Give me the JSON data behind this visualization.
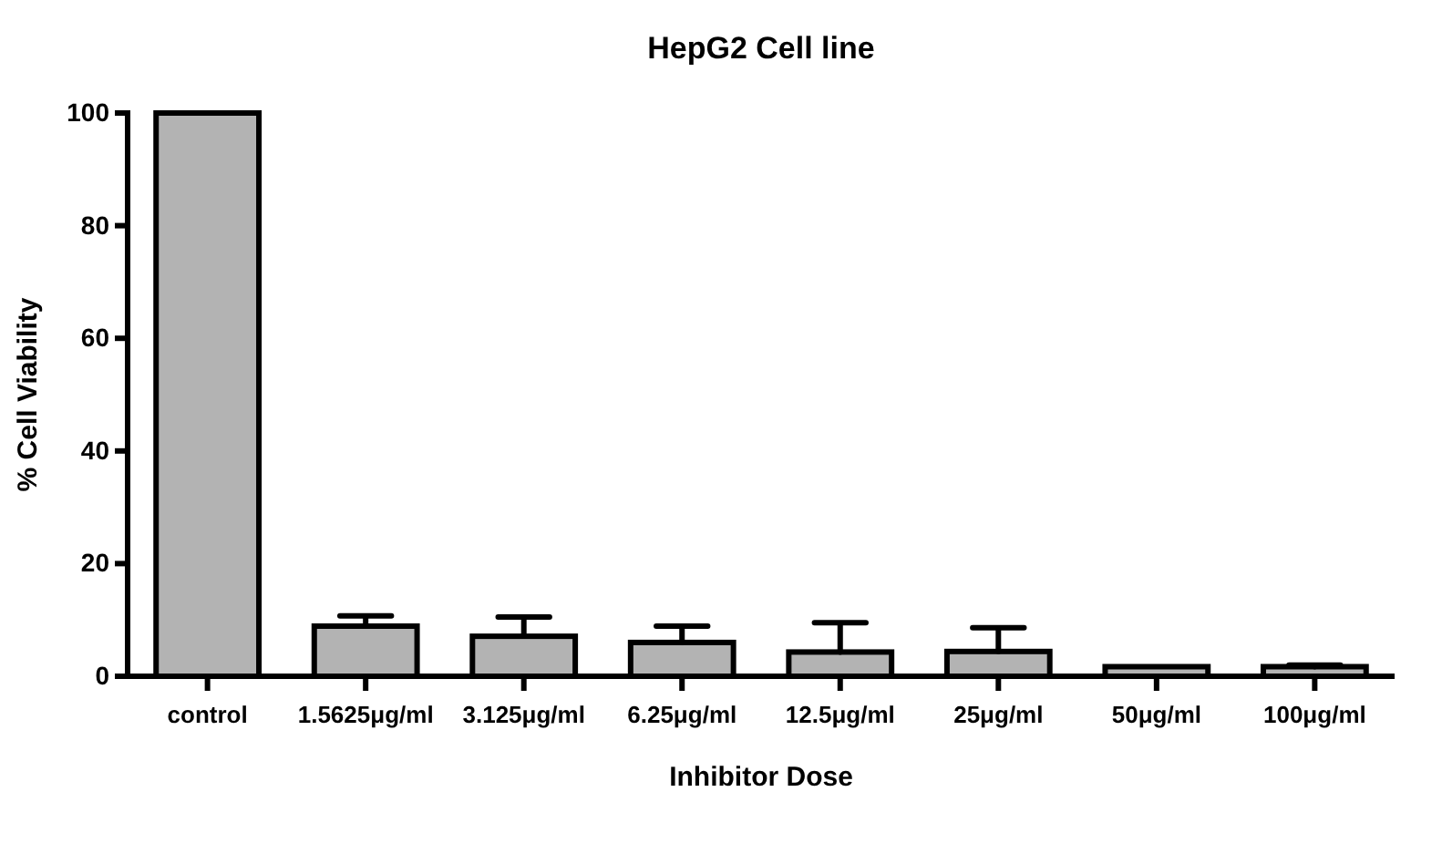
{
  "chart_data": {
    "type": "bar",
    "title": "HepG2 Cell line",
    "xlabel": "Inhibitor Dose",
    "ylabel": "% Cell Viability",
    "categories": [
      "control",
      "1.5625μg/ml",
      "3.125μg/ml",
      "6.25μg/ml",
      "12.5μg/ml",
      "25μg/ml",
      "50μg/ml",
      "100μg/ml"
    ],
    "values": [
      100,
      8.9,
      7.1,
      6.0,
      4.3,
      4.4,
      1.7,
      1.7
    ],
    "errors": [
      null,
      [
        8.9,
        10.7
      ],
      [
        7.1,
        10.5
      ],
      [
        6.0,
        8.9
      ],
      [
        4.3,
        9.5
      ],
      [
        4.4,
        8.6
      ],
      null,
      [
        1.7,
        2.0
      ]
    ],
    "color": "#b3b3b3",
    "ylim": [
      0,
      100
    ],
    "yticks": [
      0,
      20,
      40,
      60,
      80,
      100
    ],
    "grid": false
  }
}
